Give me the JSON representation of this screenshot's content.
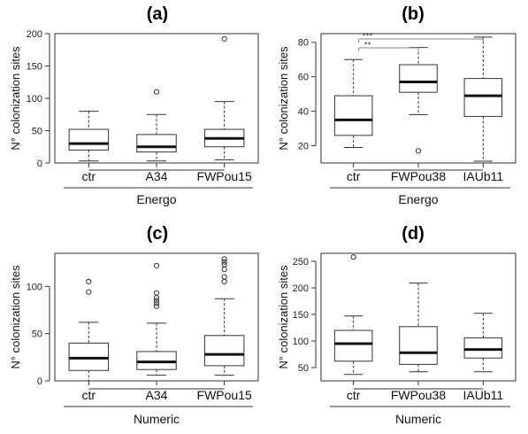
{
  "chart_data": [
    {
      "type": "boxplot",
      "title": "(a)",
      "ylabel": "N° colonization sites",
      "xlabel": "Energo",
      "ylim": [
        0,
        200
      ],
      "yticks": [
        0,
        50,
        100,
        150,
        200
      ],
      "categories": [
        "ctr",
        "A34",
        "FWPou15"
      ],
      "boxes": [
        {
          "whisker_low": 3,
          "q1": 20,
          "median": 30,
          "q3": 52,
          "whisker_high": 80,
          "outliers": []
        },
        {
          "whisker_low": 3,
          "q1": 17,
          "median": 25,
          "q3": 44,
          "whisker_high": 75,
          "outliers": [
            110
          ]
        },
        {
          "whisker_low": 5,
          "q1": 25,
          "median": 38,
          "q3": 52,
          "whisker_high": 95,
          "outliers": [
            192
          ]
        }
      ],
      "significance": []
    },
    {
      "type": "boxplot",
      "title": "(b)",
      "ylabel": "N° colonization sites",
      "xlabel": "Energo",
      "ylim": [
        10,
        85
      ],
      "yticks": [
        20,
        40,
        60,
        80
      ],
      "categories": [
        "ctr",
        "FWPou38",
        "IAUb11"
      ],
      "boxes": [
        {
          "whisker_low": 19,
          "q1": 26,
          "median": 35,
          "q3": 49,
          "whisker_high": 70,
          "outliers": []
        },
        {
          "whisker_low": 38,
          "q1": 51,
          "median": 57,
          "q3": 67,
          "whisker_high": 77,
          "outliers": [
            17
          ]
        },
        {
          "whisker_low": 11,
          "q1": 37,
          "median": 49,
          "q3": 59,
          "whisker_high": 83,
          "outliers": []
        }
      ],
      "significance": [
        {
          "from": 0,
          "to": 2,
          "label": "***"
        },
        {
          "from": 0,
          "to": 1,
          "label": "**"
        }
      ]
    },
    {
      "type": "boxplot",
      "title": "(c)",
      "ylabel": "N° colonization sites",
      "xlabel": "Numeric",
      "ylim": [
        0,
        135
      ],
      "yticks": [
        0,
        50,
        100
      ],
      "categories": [
        "ctr",
        "A34",
        "FWPou15"
      ],
      "boxes": [
        {
          "whisker_low": 0,
          "q1": 11,
          "median": 24,
          "q3": 40,
          "whisker_high": 62,
          "outliers": [
            94,
            105
          ]
        },
        {
          "whisker_low": 6,
          "q1": 12,
          "median": 20,
          "q3": 31,
          "whisker_high": 61,
          "outliers": [
            79,
            82,
            85,
            88,
            93,
            122
          ]
        },
        {
          "whisker_low": 6,
          "q1": 16,
          "median": 28,
          "q3": 48,
          "whisker_high": 87,
          "outliers": [
            105,
            110,
            118,
            123,
            126,
            129
          ]
        }
      ],
      "significance": []
    },
    {
      "type": "boxplot",
      "title": "(d)",
      "ylabel": "N° colonization sites",
      "xlabel": "Numeric",
      "ylim": [
        25,
        265
      ],
      "yticks": [
        50,
        100,
        150,
        200,
        250
      ],
      "categories": [
        "ctr",
        "FWPou38",
        "IAUb11"
      ],
      "boxes": [
        {
          "whisker_low": 37,
          "q1": 62,
          "median": 95,
          "q3": 120,
          "whisker_high": 147,
          "outliers": [
            258
          ]
        },
        {
          "whisker_low": 42,
          "q1": 56,
          "median": 78,
          "q3": 127,
          "whisker_high": 209,
          "outliers": []
        },
        {
          "whisker_low": 42,
          "q1": 68,
          "median": 84,
          "q3": 106,
          "whisker_high": 152,
          "outliers": []
        }
      ],
      "significance": []
    }
  ]
}
